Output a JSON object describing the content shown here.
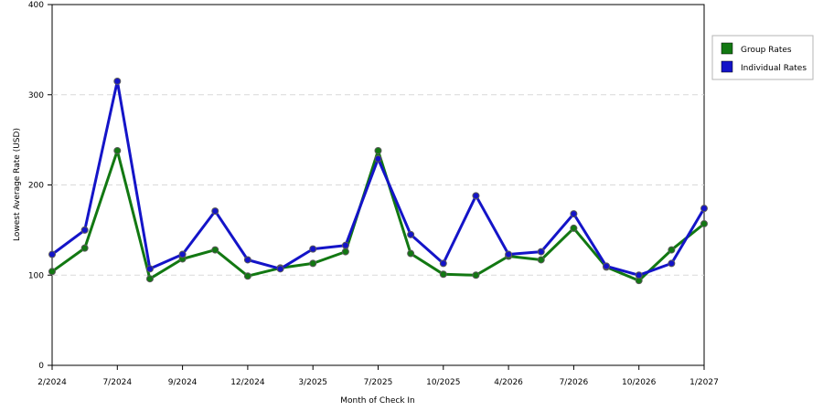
{
  "chart_data": {
    "type": "line",
    "title": "",
    "xlabel": "Month of Check In",
    "ylabel": "Lowest Average Rate (USD)",
    "ylim": [
      0,
      400
    ],
    "yticks": [
      0,
      100,
      200,
      300,
      400
    ],
    "grid": "horizontal dashed",
    "legend_position": "top-right",
    "x_tick_labels": [
      "2/2024",
      "7/2024",
      "9/2024",
      "12/2024",
      "3/2025",
      "7/2025",
      "10/2025",
      "4/2026",
      "7/2026",
      "10/2026",
      "1/2027"
    ],
    "series": [
      {
        "name": "Group Rates",
        "color": "#127812",
        "values": [
          104,
          130,
          238,
          96,
          118,
          128,
          99,
          108,
          113,
          126,
          238,
          124,
          101,
          100,
          121,
          117,
          152,
          109,
          94,
          128,
          157
        ]
      },
      {
        "name": "Individual Rates",
        "color": "#1414c8",
        "values": [
          123,
          150,
          315,
          107,
          123,
          171,
          117,
          107,
          129,
          133,
          229,
          145,
          113,
          188,
          123,
          126,
          168,
          110,
          100,
          113,
          174
        ]
      }
    ]
  }
}
